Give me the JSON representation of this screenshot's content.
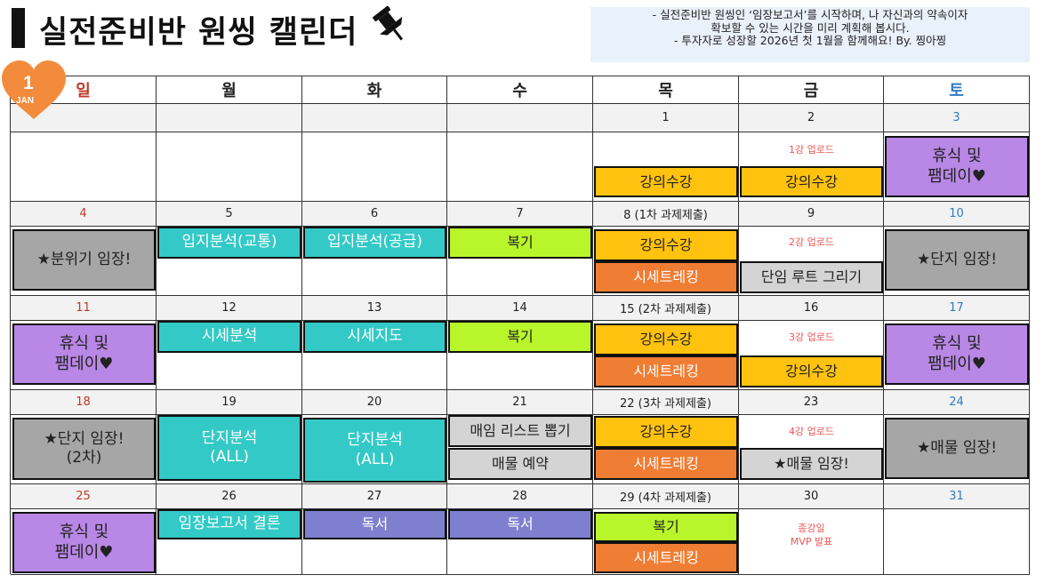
{
  "title": "실전준비반 원씽 캘린더",
  "notice": [
    "-  실전준비반 원씽인 ‘임장보고서’를 시작하며, 나 자신과의 약속이자",
    "확보할 수 있는 시간을 미리 계획해 봅시다.",
    "-  투자자로 성장할 2026년 첫 1월을 함께해요!   By. 찡아찡"
  ],
  "badge": {
    "number": "1",
    "month": "JAN"
  },
  "colors": {
    "orange": "#ffc20e",
    "dark_orange": "#ef7d33",
    "purple": "#b987e6",
    "gray": "#a6a6a6",
    "teal": "#33c9c6",
    "lime": "#b8f52a",
    "violet": "#7f7fd0",
    "sunday": "#c0392b",
    "saturday": "#2f7bbf"
  },
  "weekdays": [
    "일",
    "월",
    "화",
    "수",
    "목",
    "금",
    "토"
  ],
  "weeks": [
    {
      "dates": [
        "",
        "",
        "",
        "",
        "1",
        "2",
        "3"
      ]
    },
    {
      "dates": [
        "4",
        "5",
        "6",
        "7",
        "8 (1차 과제제출)",
        "9",
        "10"
      ]
    },
    {
      "dates": [
        "11",
        "12",
        "13",
        "14",
        "15 (2차 과제제출)",
        "16",
        "17"
      ]
    },
    {
      "dates": [
        "18",
        "19",
        "20",
        "21",
        "22 (3차 과제제출)",
        "23",
        "24"
      ]
    },
    {
      "dates": [
        "25",
        "26",
        "27",
        "28",
        "29 (4차 과제제출)",
        "30",
        "31"
      ]
    }
  ],
  "events": {
    "lecture": "강의수강",
    "rest": "휴식 및\n팸데이♥",
    "price_trek": "시세트레킹",
    "review": "복기",
    "upload1": "1강 업로드",
    "upload2": "2강 업로드",
    "upload3": "3강 업로드",
    "upload4": "4강 업로드",
    "mood_visit": "★분위기 임장!",
    "complex_visit": "★단지 임장!",
    "complex_visit2": "★단지 임장!\n(2차)",
    "listing_visit": "★매물 임장!",
    "location_traffic": "입지분석(교통)",
    "location_supply": "입지분석(공급)",
    "route": "단임 루트 그리기",
    "price_analysis": "시세분석",
    "price_map": "시세지도",
    "complex_all": "단지분석\n(ALL)",
    "pick_list": "매임 리스트 뽑기",
    "reserve": "매물 예약",
    "report_conclusion": "임장보고서 결론",
    "reading": "독서",
    "final": "종강일\nMVP 발표"
  }
}
